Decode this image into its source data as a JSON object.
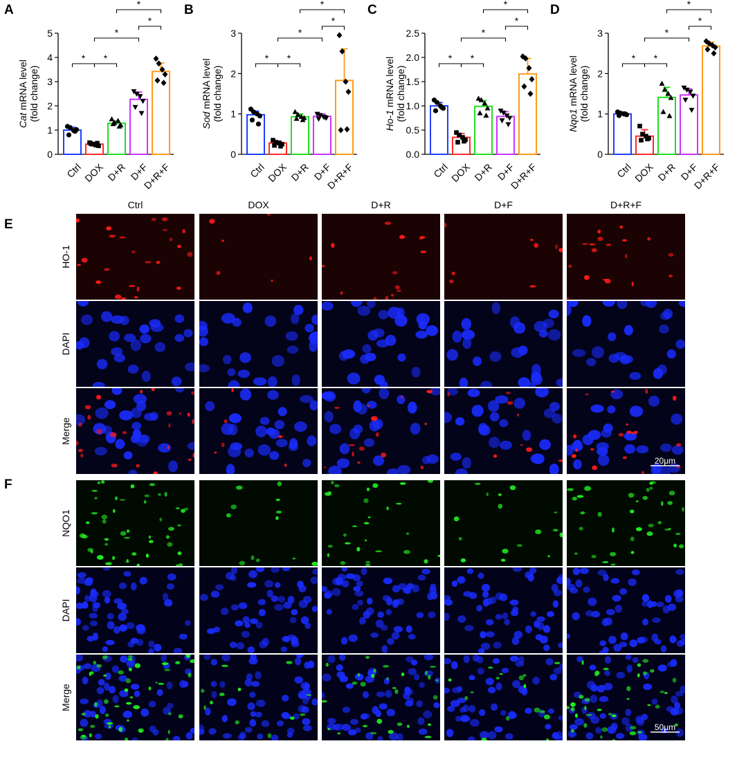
{
  "panel_letters": [
    "A",
    "B",
    "C",
    "D",
    "E",
    "F"
  ],
  "groups": [
    "Ctrl",
    "DOX",
    "D+R",
    "D+F",
    "D+R+F"
  ],
  "group_colors": [
    "#1f3fff",
    "#ff2a2a",
    "#22dd22",
    "#cc33ff",
    "#ff9a1a"
  ],
  "ylabel_suffix": "mRNA level",
  "ylabel_unit": "(fold change)",
  "sig_marker": "*",
  "chart_data": [
    {
      "type": "bar",
      "gene": "Cat",
      "categories": [
        "Ctrl",
        "DOX",
        "D+R",
        "D+F",
        "D+R+F"
      ],
      "values": [
        1.0,
        0.42,
        1.28,
        2.27,
        3.42
      ],
      "errors": [
        0.12,
        0.06,
        0.1,
        0.3,
        0.35
      ],
      "points": [
        [
          1.15,
          1.1,
          0.98,
          1.02,
          0.8,
          0.95
        ],
        [
          0.48,
          0.42,
          0.38,
          0.35,
          0.44,
          0.46
        ],
        [
          1.45,
          1.3,
          1.38,
          1.2,
          1.25,
          1.15
        ],
        [
          2.6,
          2.5,
          2.4,
          2.2,
          1.95,
          1.7
        ],
        [
          3.95,
          3.75,
          3.5,
          3.3,
          3.05,
          2.95
        ]
      ],
      "markers": [
        "circle",
        "square",
        "triangle",
        "triangle-down",
        "diamond"
      ],
      "ylim": [
        0,
        5
      ],
      "ticks": [
        0,
        1,
        2,
        3,
        4,
        5
      ],
      "tick_labels": [
        "0",
        "1",
        "2",
        "3",
        "4",
        "5"
      ]
    },
    {
      "type": "bar",
      "gene": "Sod",
      "categories": [
        "Ctrl",
        "DOX",
        "D+R",
        "D+F",
        "D+R+F"
      ],
      "values": [
        0.98,
        0.28,
        0.93,
        0.94,
        1.83
      ],
      "errors": [
        0.09,
        0.05,
        0.07,
        0.06,
        0.78
      ],
      "points": [
        [
          1.12,
          1.05,
          1.0,
          0.95,
          0.85,
          0.75
        ],
        [
          0.35,
          0.3,
          0.28,
          0.25,
          0.22,
          0.2
        ],
        [
          1.05,
          0.98,
          0.93,
          0.9,
          0.88,
          0.85
        ],
        [
          1.0,
          0.97,
          0.93,
          0.9,
          0.88,
          0.92
        ],
        [
          2.95,
          2.55,
          1.8,
          1.55,
          0.6,
          0.62
        ]
      ],
      "markers": [
        "circle",
        "square",
        "triangle",
        "triangle-down",
        "diamond"
      ],
      "ylim": [
        0,
        3
      ],
      "ticks": [
        0,
        1,
        2,
        3
      ],
      "tick_labels": [
        "0",
        "1",
        "2",
        "3"
      ]
    },
    {
      "type": "bar",
      "gene": "Ho-1",
      "categories": [
        "Ctrl",
        "DOX",
        "D+R",
        "D+F",
        "D+R+F"
      ],
      "values": [
        1.0,
        0.35,
        0.99,
        0.78,
        1.66
      ],
      "errors": [
        0.07,
        0.08,
        0.12,
        0.1,
        0.32
      ],
      "points": [
        [
          1.12,
          1.07,
          1.0,
          0.95,
          0.9,
          0.97
        ],
        [
          0.45,
          0.4,
          0.35,
          0.3,
          0.25,
          0.27
        ],
        [
          1.15,
          1.12,
          1.05,
          0.95,
          0.85,
          0.8
        ],
        [
          0.9,
          0.86,
          0.8,
          0.75,
          0.7,
          0.62
        ],
        [
          2.02,
          1.98,
          1.78,
          1.55,
          1.4,
          1.25
        ]
      ],
      "markers": [
        "circle",
        "square",
        "triangle",
        "triangle-down",
        "diamond"
      ],
      "ylim": [
        0,
        2.5
      ],
      "ticks": [
        0,
        0.5,
        1.0,
        1.5,
        2.0,
        2.5
      ],
      "tick_labels": [
        "0.0",
        "0.5",
        "1.0",
        "1.5",
        "2.0",
        "2.5"
      ]
    },
    {
      "type": "bar",
      "gene": "Nqo1",
      "categories": [
        "Ctrl",
        "DOX",
        "D+R",
        "D+F",
        "D+R+F"
      ],
      "values": [
        1.0,
        0.45,
        1.41,
        1.47,
        2.68
      ],
      "errors": [
        0.05,
        0.16,
        0.25,
        0.15,
        0.1
      ],
      "points": [
        [
          1.05,
          1.02,
          1.0,
          0.98,
          0.96,
          1.0
        ],
        [
          0.7,
          0.5,
          0.45,
          0.4,
          0.35,
          0.38
        ],
        [
          1.75,
          1.6,
          1.5,
          1.4,
          1.05,
          0.95
        ],
        [
          1.65,
          1.6,
          1.55,
          1.45,
          1.35,
          1.1
        ],
        [
          2.8,
          2.75,
          2.7,
          2.65,
          2.6,
          2.5
        ]
      ],
      "markers": [
        "circle",
        "square",
        "triangle",
        "triangle-down",
        "diamond"
      ],
      "ylim": [
        0,
        3
      ],
      "ticks": [
        0,
        1,
        2,
        3
      ],
      "tick_labels": [
        "0",
        "1",
        "2",
        "3"
      ]
    }
  ],
  "significance_pairs": [
    [
      0,
      1
    ],
    [
      1,
      2
    ],
    [
      1,
      3
    ],
    [
      3,
      4
    ],
    [
      2,
      4
    ]
  ],
  "micrographs": {
    "columns": [
      "Ctrl",
      "DOX",
      "D+R",
      "D+F",
      "D+R+F"
    ],
    "panel_E": {
      "rows": [
        "HO-1",
        "DAPI",
        "Merge"
      ],
      "scale_bar": "20μm",
      "marker_color": "#ff1a1a",
      "nucleus_color": "#1a2cff",
      "background_red": "#1c0303",
      "background_blue": "#03031a"
    },
    "panel_F": {
      "rows": [
        "NQO1",
        "DAPI",
        "Merge"
      ],
      "scale_bar": "50μm",
      "marker_color": "#22ee22",
      "nucleus_color": "#1a2cff",
      "background_green": "#010a01",
      "background_blue": "#02021a"
    }
  }
}
